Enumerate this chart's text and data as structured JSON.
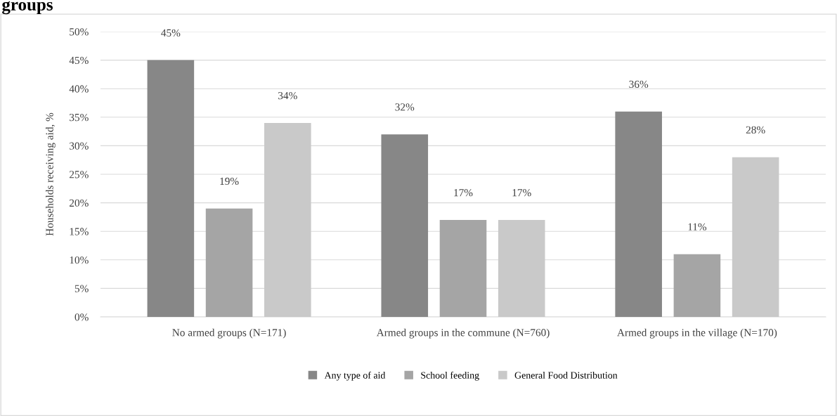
{
  "chart_data": {
    "type": "bar",
    "title": "groups",
    "ylabel": "Households receiving aid, %",
    "categories": [
      "No armed groups (N=171)",
      "Armed groups in the commune (N=760)",
      "Armed groups in the village (N=170)"
    ],
    "series": [
      {
        "name": "Any type of aid",
        "color": "#878787",
        "values": [
          45,
          32,
          36
        ],
        "value_labels": [
          "45%",
          "32%",
          "36%"
        ]
      },
      {
        "name": "School feeding",
        "color": "#a5a5a5",
        "values": [
          19,
          17,
          11
        ],
        "value_labels": [
          "19%",
          "17%",
          "11%"
        ]
      },
      {
        "name": "General Food Distribution",
        "color": "#c9c9c9",
        "values": [
          34,
          17,
          28
        ],
        "value_labels": [
          "34%",
          "17%",
          "28%"
        ]
      }
    ],
    "ylim": [
      0,
      50
    ],
    "yticks": [
      {
        "value": 0,
        "label": "0%"
      },
      {
        "value": 5,
        "label": "5%"
      },
      {
        "value": 10,
        "label": "10%"
      },
      {
        "value": 15,
        "label": "15%"
      },
      {
        "value": 20,
        "label": "20%"
      },
      {
        "value": 25,
        "label": "25%"
      },
      {
        "value": 30,
        "label": "30%"
      },
      {
        "value": 35,
        "label": "35%"
      },
      {
        "value": 40,
        "label": "40%"
      },
      {
        "value": 45,
        "label": "45%"
      },
      {
        "value": 50,
        "label": "50%"
      }
    ],
    "grid": "y",
    "legend": "bottom"
  }
}
